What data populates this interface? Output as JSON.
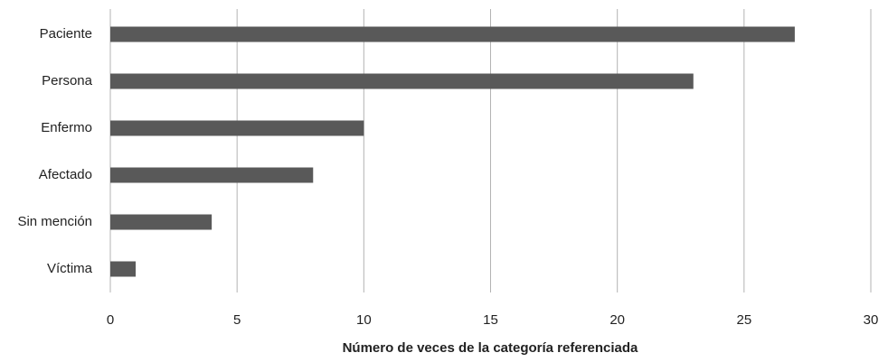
{
  "chart_data": {
    "type": "bar",
    "orientation": "horizontal",
    "x_label": "Número de veces de la categoría referenciada",
    "categories": [
      "Paciente",
      "Persona",
      "Enfermo",
      "Afectado",
      "Sin mención",
      "Víctima"
    ],
    "values": [
      27,
      23,
      10,
      8,
      4,
      1
    ],
    "color": "#595959",
    "xlim": [
      0,
      30
    ],
    "xticks": [
      0,
      5,
      10,
      15,
      20,
      25,
      30
    ],
    "grid": true
  }
}
